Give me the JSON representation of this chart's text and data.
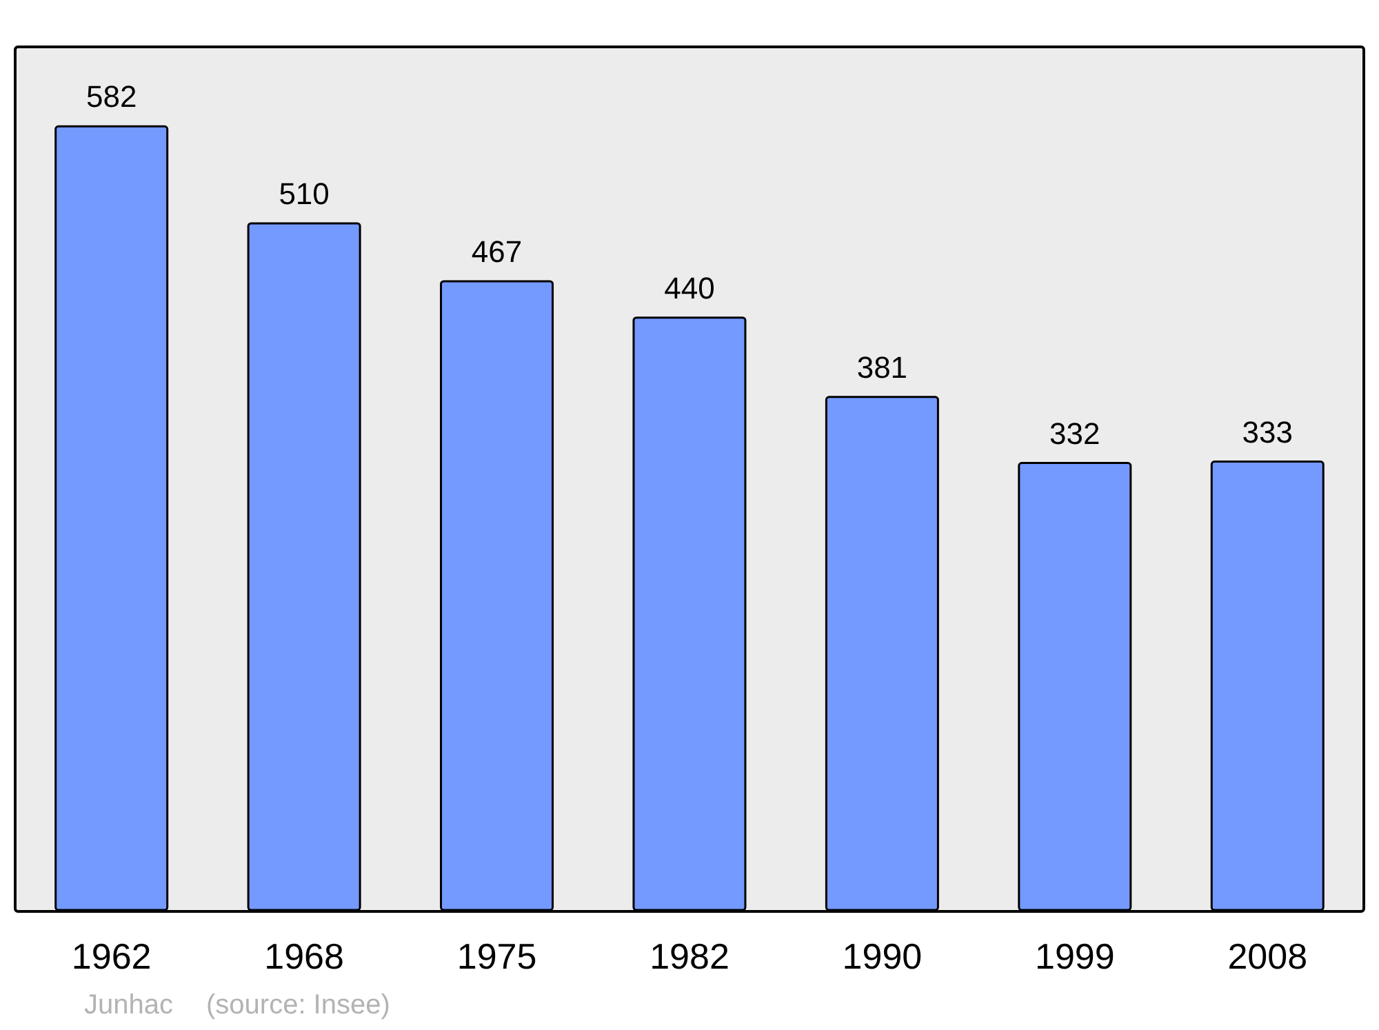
{
  "chart_data": {
    "type": "bar",
    "categories": [
      "1962",
      "1968",
      "1975",
      "1982",
      "1990",
      "1999",
      "2008"
    ],
    "values": [
      582,
      510,
      467,
      440,
      381,
      332,
      333
    ],
    "color": "#7499ff",
    "ylim": [
      0,
      640
    ],
    "data_labels": true,
    "annotations": [
      "Junhac",
      "(source: Insee)"
    ]
  }
}
